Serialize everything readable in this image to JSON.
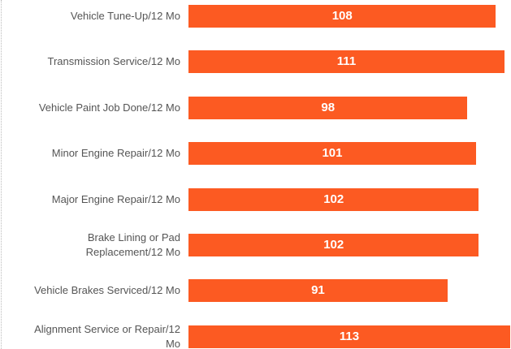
{
  "chart_data": {
    "type": "bar",
    "orientation": "horizontal",
    "categories": [
      "Vehicle Tune-Up/12 Mo",
      "Transmission Service/12 Mo",
      "Vehicle Paint Job Done/12 Mo",
      "Minor Engine Repair/12 Mo",
      "Major Engine Repair/12 Mo",
      "Brake Lining or Pad Replacement/12 Mo",
      "Vehicle Brakes Serviced/12 Mo",
      "Alignment Service or Repair/12 Mo"
    ],
    "values": [
      108,
      111,
      98,
      101,
      102,
      102,
      91,
      113
    ],
    "color": "#fc5a22",
    "xlim": [
      0,
      113
    ]
  }
}
